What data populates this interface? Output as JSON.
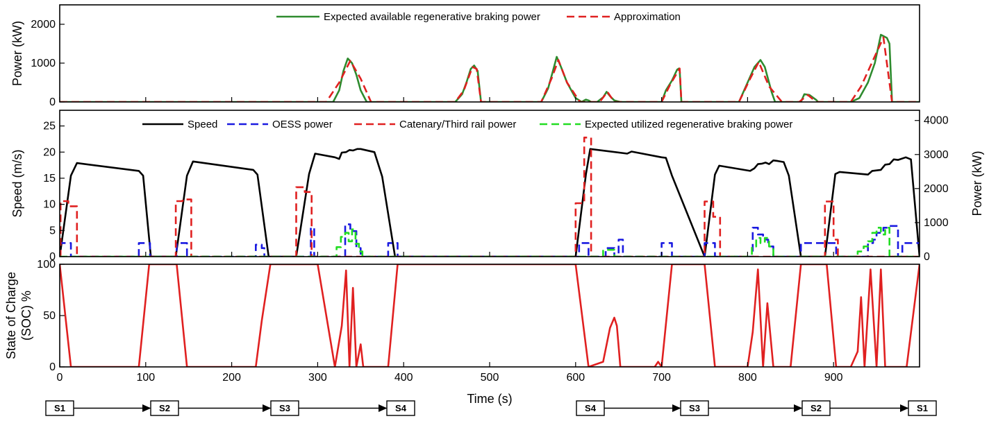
{
  "chart_data": [
    {
      "type": "line",
      "panel": "top",
      "ylabel": "Power (kW)",
      "xlim": [
        0,
        1000
      ],
      "ylim": [
        0,
        2500
      ],
      "yticks": [
        0,
        1000,
        2000
      ],
      "legend_placement": "top-center",
      "series": [
        {
          "name": "Expected available regenerative braking power",
          "color": "#2e8b2e",
          "style": "solid",
          "x": [
            0,
            318,
            325,
            330,
            335,
            340,
            345,
            350,
            357,
            380,
            460,
            468,
            473,
            478,
            482,
            486,
            490,
            560,
            568,
            573,
            578,
            583,
            590,
            600,
            607,
            610,
            612,
            615,
            618,
            625,
            632,
            636,
            640,
            645,
            652,
            655,
            700,
            705,
            712,
            718,
            720,
            721,
            723,
            780,
            790,
            800,
            808,
            815,
            820,
            828,
            832,
            850,
            862,
            866,
            872,
            880,
            882,
            920,
            930,
            940,
            948,
            955,
            962,
            965,
            968,
            1000
          ],
          "y": [
            0,
            0,
            300,
            800,
            1120,
            1000,
            700,
            300,
            0,
            0,
            0,
            200,
            500,
            850,
            940,
            800,
            0,
            0,
            350,
            750,
            1160,
            900,
            500,
            100,
            0,
            40,
            60,
            40,
            0,
            0,
            120,
            260,
            150,
            40,
            0,
            0,
            0,
            300,
            550,
            830,
            860,
            830,
            0,
            0,
            0,
            500,
            900,
            1080,
            900,
            250,
            0,
            0,
            0,
            200,
            180,
            50,
            0,
            0,
            100,
            500,
            1000,
            1730,
            1650,
            1500,
            0,
            0
          ]
        },
        {
          "name": "Approximation",
          "color": "#e02020",
          "style": "dashed",
          "x": [
            0,
            310,
            325,
            338,
            350,
            362,
            460,
            470,
            480,
            485,
            490,
            560,
            572,
            580,
            590,
            605,
            628,
            637,
            645,
            700,
            710,
            721,
            723,
            790,
            803,
            813,
            825,
            840,
            860,
            870,
            880,
            920,
            932,
            958,
            968,
            1000
          ],
          "y": [
            0,
            0,
            500,
            1060,
            600,
            0,
            0,
            300,
            900,
            850,
            0,
            0,
            600,
            1080,
            500,
            0,
            0,
            260,
            0,
            0,
            450,
            860,
            0,
            0,
            600,
            1030,
            400,
            0,
            0,
            180,
            0,
            0,
            400,
            1660,
            0,
            0
          ]
        }
      ]
    },
    {
      "type": "line",
      "panel": "middle",
      "ylabel": "Speed (m/s)",
      "y2label": "Power (kW)",
      "xlim": [
        0,
        1000
      ],
      "ylim": [
        0,
        28
      ],
      "yticks": [
        0,
        5,
        10,
        15,
        20,
        25
      ],
      "y2lim": [
        0,
        4300
      ],
      "y2ticks": [
        0,
        1000,
        2000,
        3000,
        4000
      ],
      "legend_placement": "top-center",
      "series": [
        {
          "name": "Speed",
          "axis": "left",
          "color": "#000000",
          "style": "solid",
          "x": [
            0,
            13,
            20,
            92,
            97,
            106,
            135,
            148,
            155,
            225,
            230,
            243,
            275,
            290,
            297,
            320,
            325,
            328,
            333,
            337,
            341,
            346,
            350,
            366,
            375,
            390,
            600,
            612,
            617,
            660,
            665,
            700,
            705,
            712,
            750,
            762,
            767,
            803,
            808,
            812,
            817,
            821,
            825,
            830,
            835,
            842,
            848,
            862,
            890,
            902,
            907,
            940,
            945,
            950,
            955,
            960,
            965,
            970,
            975,
            984,
            990,
            1000
          ],
          "y": [
            0,
            15.5,
            17.9,
            16.4,
            15.5,
            0,
            0,
            15.5,
            18.2,
            16.6,
            15.7,
            0,
            0,
            15.8,
            19.7,
            19,
            18.7,
            19.9,
            20,
            20.4,
            20.3,
            20.6,
            20.6,
            20,
            15.3,
            0,
            0,
            15.8,
            20.6,
            19.7,
            20.1,
            19,
            18.9,
            15.5,
            0,
            15.7,
            17.4,
            16.4,
            16.9,
            17.7,
            17.8,
            18,
            17.7,
            18.4,
            18.3,
            18.1,
            15.5,
            0,
            0,
            15.8,
            16.2,
            15.7,
            16.4,
            16.5,
            16.6,
            17.6,
            17.7,
            18.6,
            18.5,
            19,
            18.6,
            0
          ]
        },
        {
          "name": "OESS power",
          "axis": "right",
          "color": "#1a1ae0",
          "style": "dashed",
          "x": [
            0,
            1,
            1,
            13,
            13,
            92,
            92,
            105,
            105,
            136,
            136,
            148,
            148,
            228,
            228,
            235,
            235,
            238,
            238,
            245,
            245,
            292,
            292,
            296,
            296,
            300,
            300,
            332,
            332,
            338,
            338,
            345,
            345,
            350,
            350,
            362,
            362,
            382,
            382,
            393,
            393,
            604,
            604,
            615,
            615,
            635,
            635,
            645,
            645,
            650,
            650,
            655,
            655,
            700,
            700,
            712,
            712,
            750,
            750,
            762,
            762,
            806,
            806,
            812,
            812,
            818,
            818,
            824,
            824,
            830,
            830,
            862,
            862,
            892,
            892,
            903,
            903,
            940,
            940,
            946,
            946,
            950,
            950,
            958,
            958,
            963,
            963,
            975,
            975,
            980,
            980,
            1000
          ],
          "y": [
            0,
            0,
            400,
            400,
            0,
            0,
            400,
            400,
            0,
            0,
            400,
            400,
            0,
            0,
            350,
            350,
            250,
            250,
            0,
            0,
            0,
            0,
            850,
            850,
            0,
            0,
            0,
            0,
            950,
            950,
            750,
            750,
            250,
            250,
            0,
            0,
            0,
            0,
            400,
            400,
            0,
            0,
            400,
            400,
            0,
            0,
            250,
            250,
            0,
            0,
            500,
            500,
            0,
            0,
            400,
            400,
            0,
            0,
            400,
            400,
            0,
            0,
            850,
            850,
            650,
            650,
            500,
            500,
            300,
            300,
            0,
            0,
            400,
            400,
            400,
            400,
            0,
            0,
            400,
            400,
            500,
            500,
            700,
            700,
            850,
            850,
            900,
            900,
            0,
            0,
            400,
            400
          ]
        },
        {
          "name": "Catenary/Third rail power",
          "axis": "right",
          "color": "#e02020",
          "style": "dashed",
          "x": [
            0,
            1,
            1,
            10,
            10,
            20,
            20,
            135,
            135,
            143,
            143,
            153,
            153,
            275,
            275,
            285,
            285,
            293,
            293,
            600,
            600,
            610,
            610,
            618,
            618,
            750,
            750,
            760,
            760,
            768,
            768,
            890,
            890,
            900,
            900,
            905,
            905,
            1000
          ],
          "y": [
            0,
            0,
            1630,
            1630,
            1480,
            1480,
            0,
            0,
            1630,
            1630,
            1680,
            1680,
            0,
            0,
            2040,
            2040,
            1900,
            1900,
            0,
            0,
            1570,
            1570,
            3500,
            3500,
            0,
            0,
            1620,
            1620,
            1170,
            1170,
            0,
            0,
            1620,
            1620,
            500,
            500,
            0,
            0
          ]
        },
        {
          "name": "Expected utilized regenerative braking power",
          "axis": "right",
          "color": "#22dd22",
          "style": "dashed",
          "x": [
            0,
            322,
            322,
            327,
            327,
            332,
            332,
            336,
            336,
            340,
            340,
            344,
            344,
            348,
            348,
            352,
            352,
            632,
            632,
            645,
            645,
            805,
            805,
            810,
            810,
            815,
            815,
            820,
            820,
            825,
            825,
            830,
            830,
            928,
            928,
            935,
            935,
            940,
            940,
            945,
            945,
            950,
            950,
            955,
            955,
            960,
            960,
            965,
            965,
            1000
          ],
          "y": [
            0,
            0,
            280,
            280,
            580,
            580,
            700,
            700,
            450,
            450,
            800,
            800,
            380,
            380,
            150,
            150,
            0,
            0,
            200,
            200,
            0,
            0,
            300,
            300,
            550,
            550,
            400,
            400,
            550,
            550,
            300,
            300,
            0,
            0,
            150,
            150,
            300,
            300,
            450,
            450,
            700,
            700,
            850,
            850,
            650,
            650,
            850,
            850,
            0,
            0
          ]
        }
      ]
    },
    {
      "type": "line",
      "panel": "bottom",
      "ylabel_lines": [
        "State of Charge",
        "(SOC) %"
      ],
      "xlabel": "Time (s)",
      "xlim": [
        0,
        1000
      ],
      "xticks": [
        0,
        100,
        200,
        300,
        400,
        500,
        600,
        700,
        800,
        900
      ],
      "ylim": [
        0,
        100
      ],
      "yticks": [
        0,
        50,
        100
      ],
      "series": [
        {
          "name": "",
          "color": "#e02020",
          "style": "solid",
          "x": [
            0,
            13,
            92,
            104,
            136,
            148,
            228,
            235,
            245,
            292,
            300,
            320,
            328,
            333,
            337,
            341,
            345,
            350,
            353,
            357,
            382,
            393,
            600,
            615,
            632,
            640,
            645,
            648,
            652,
            692,
            696,
            700,
            712,
            750,
            762,
            800,
            806,
            812,
            818,
            823,
            830,
            850,
            862,
            892,
            903,
            920,
            928,
            932,
            936,
            943,
            950,
            955,
            960,
            965,
            985,
            1000
          ],
          "y": [
            100,
            0,
            0,
            100,
            100,
            0,
            0,
            45,
            100,
            100,
            100,
            0,
            40,
            94,
            0,
            77,
            0,
            22,
            0,
            0,
            0,
            100,
            100,
            0,
            5,
            38,
            48,
            40,
            0,
            0,
            5,
            0,
            100,
            100,
            0,
            0,
            34,
            95,
            0,
            62,
            0,
            0,
            100,
            100,
            0,
            0,
            15,
            68,
            0,
            95,
            0,
            95,
            0,
            0,
            0,
            100
          ]
        }
      ]
    }
  ],
  "legend_top": [
    "Expected available regenerative braking power",
    "Approximation"
  ],
  "legend_middle": [
    "Speed",
    "OESS power",
    "Catenary/Third rail power",
    "Expected utilized regenerative braking power"
  ],
  "stations": {
    "first_trip": [
      "S1",
      "S2",
      "S3",
      "S4"
    ],
    "second_trip": [
      "S4",
      "S3",
      "S2",
      "S1"
    ]
  }
}
